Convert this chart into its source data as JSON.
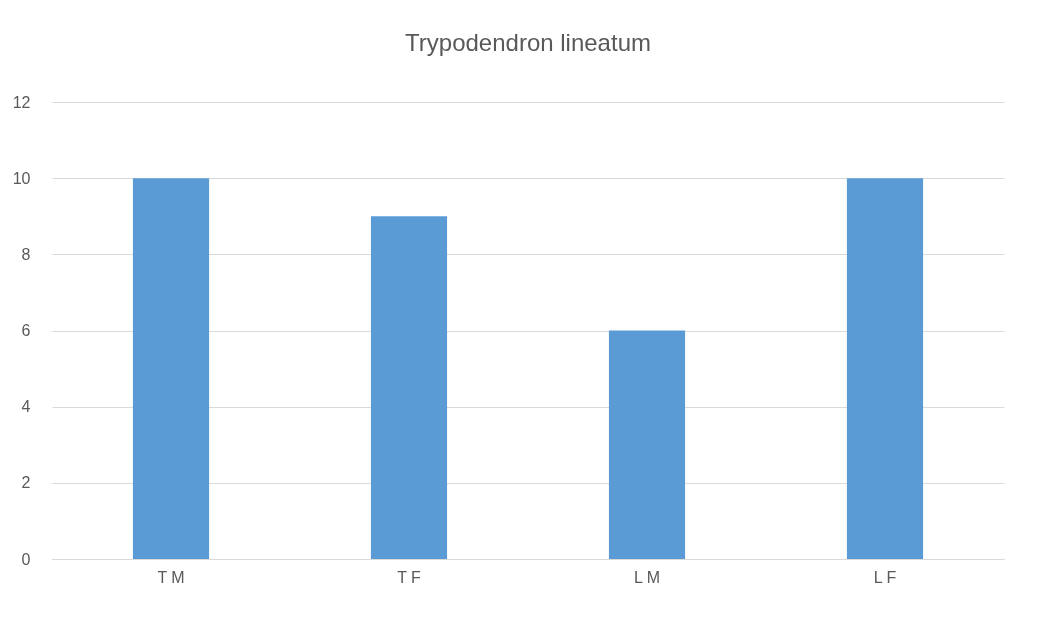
{
  "chart_data": {
    "type": "bar",
    "title": "Trypodendron lineatum",
    "categories": [
      "T M",
      "T F",
      "L M",
      "L F"
    ],
    "values": [
      10,
      9,
      6,
      10
    ],
    "color": "#5b9bd5",
    "ylim": [
      0,
      12
    ],
    "yticks": [
      0,
      2,
      4,
      6,
      8,
      10,
      12
    ],
    "grid": "y"
  }
}
